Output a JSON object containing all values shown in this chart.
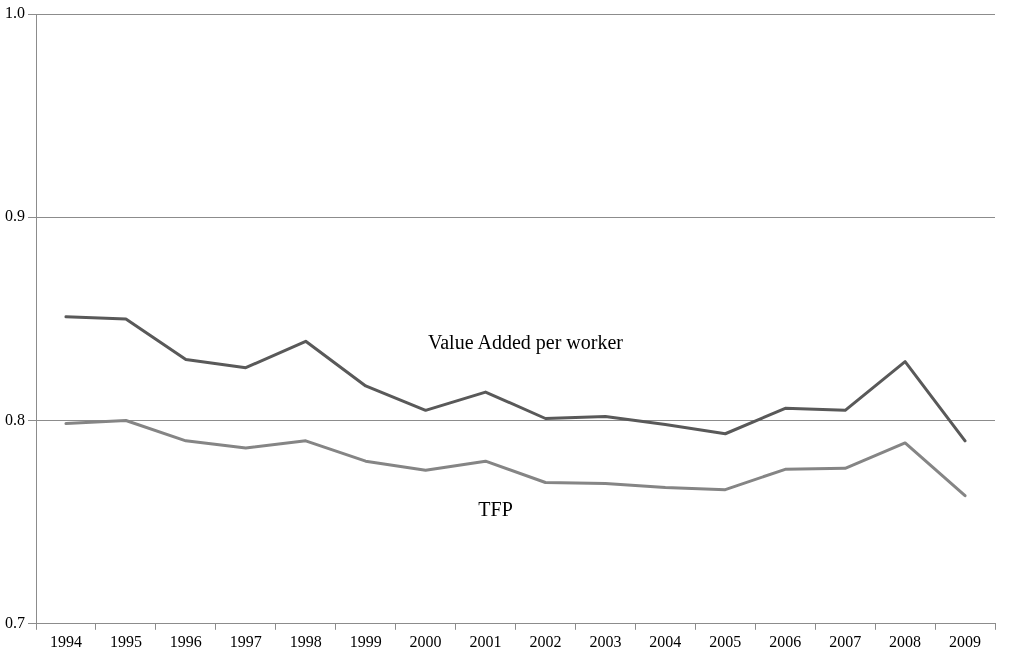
{
  "chart_data": {
    "type": "line",
    "categories": [
      "1994",
      "1995",
      "1996",
      "1997",
      "1998",
      "1999",
      "2000",
      "2001",
      "2002",
      "2003",
      "2004",
      "2005",
      "2006",
      "2007",
      "2008",
      "2009"
    ],
    "series": [
      {
        "name": "Value Added per worker",
        "color": "#595959",
        "values": [
          0.851,
          0.85,
          0.83,
          0.826,
          0.839,
          0.817,
          0.805,
          0.814,
          0.801,
          0.802,
          0.798,
          0.7935,
          0.806,
          0.805,
          0.829,
          0.79
        ]
      },
      {
        "name": "TFP",
        "color": "#858585",
        "values": [
          0.7985,
          0.8,
          0.79,
          0.7865,
          0.79,
          0.78,
          0.7755,
          0.78,
          0.7695,
          0.769,
          0.767,
          0.766,
          0.776,
          0.7765,
          0.789,
          0.763
        ]
      }
    ],
    "ylim": [
      0.7,
      1.0
    ],
    "yticks": [
      {
        "value": 0.7,
        "label": "0.7"
      },
      {
        "value": 0.8,
        "label": "0.8"
      },
      {
        "value": 0.9,
        "label": "0.9"
      },
      {
        "value": 1.0,
        "label": "1.0"
      }
    ],
    "grid": "y",
    "legend": false,
    "marker": "none",
    "line_style": "solid"
  }
}
